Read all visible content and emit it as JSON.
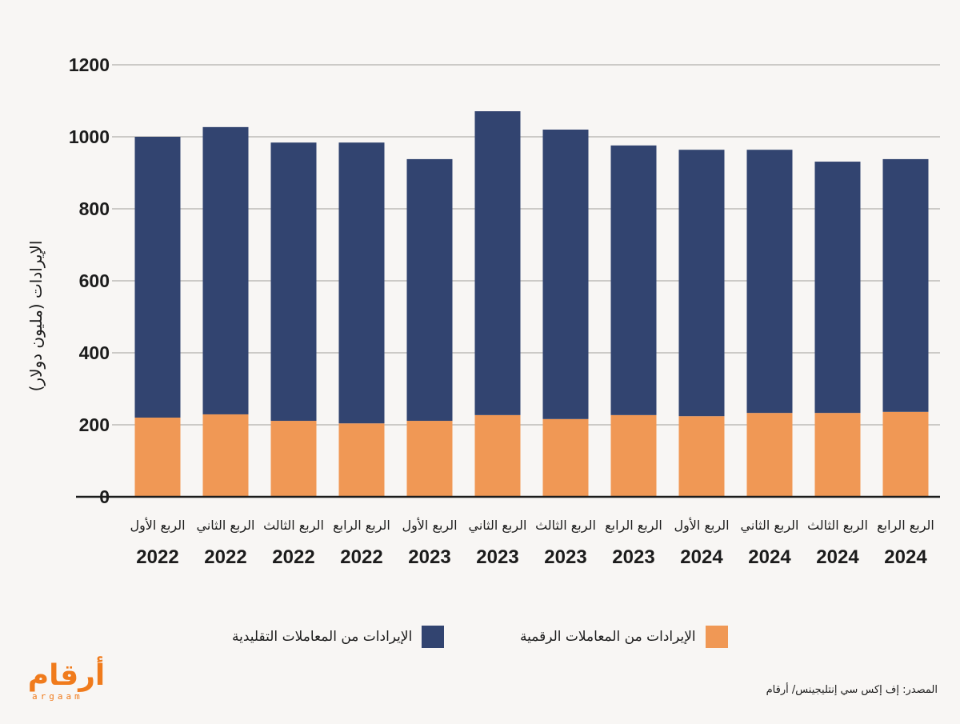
{
  "chart_data": {
    "type": "bar",
    "stacked": true,
    "title": "",
    "xlabel": "",
    "ylabel": "الإيرادات (مليون دولار)",
    "ylim": [
      0,
      1200
    ],
    "yticks": [
      0,
      200,
      400,
      600,
      800,
      1000,
      1200
    ],
    "grid": true,
    "categories": [
      {
        "quarter": "الربع الأول",
        "year": "2022"
      },
      {
        "quarter": "الربع الثاني",
        "year": "2022"
      },
      {
        "quarter": "الربع الثالث",
        "year": "2022"
      },
      {
        "quarter": "الربع الرابع",
        "year": "2022"
      },
      {
        "quarter": "الربع الأول",
        "year": "2023"
      },
      {
        "quarter": "الربع الثاني",
        "year": "2023"
      },
      {
        "quarter": "الربع الثالث",
        "year": "2023"
      },
      {
        "quarter": "الربع الرابع",
        "year": "2023"
      },
      {
        "quarter": "الربع الأول",
        "year": "2024"
      },
      {
        "quarter": "الربع الثاني",
        "year": "2024"
      },
      {
        "quarter": "الربع الثالث",
        "year": "2024"
      },
      {
        "quarter": "الربع الرابع",
        "year": "2024"
      }
    ],
    "series": [
      {
        "name": "الإيرادات من المعاملات الرقمية",
        "color": "#f09855",
        "values": [
          220,
          229,
          211,
          204,
          211,
          227,
          216,
          227,
          224,
          233,
          233,
          236
        ]
      },
      {
        "name": "الإيرادات من المعاملات التقليدية",
        "color": "#324470",
        "values": [
          780,
          798,
          773,
          780,
          727,
          844,
          804,
          749,
          740,
          731,
          698,
          702
        ]
      }
    ],
    "legend_position": "bottom"
  },
  "source": "المصدر: إف إكس سي إنتليجينس/ أرقام",
  "logo": {
    "arabic": "أرقام",
    "latin": "argaam"
  },
  "colors": {
    "background": "#f8f6f4",
    "grid": "#bdbbb8",
    "axis": "#1c1c1c"
  }
}
